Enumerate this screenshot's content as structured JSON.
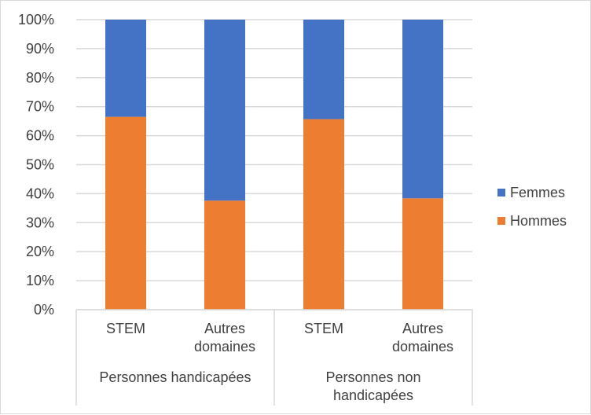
{
  "chart_data": {
    "type": "bar",
    "stacked": "percent",
    "categories": [
      "STEM",
      "Autres domaines",
      "STEM",
      "Autres domaines"
    ],
    "category_lines": [
      [
        "STEM"
      ],
      [
        "Autres",
        "domaines"
      ],
      [
        "STEM"
      ],
      [
        "Autres",
        "domaines"
      ]
    ],
    "groups": [
      {
        "label_lines": [
          "Personnes handicapées"
        ],
        "span": 2
      },
      {
        "label_lines": [
          "Personnes non",
          "handicapées"
        ],
        "span": 2
      }
    ],
    "series": [
      {
        "name": "Hommes",
        "color": "#ED7D31",
        "values": [
          66.5,
          37.6,
          65.7,
          38.4
        ]
      },
      {
        "name": "Femmes",
        "color": "#4472C4",
        "values": [
          33.5,
          62.4,
          34.3,
          61.6
        ]
      }
    ],
    "legend_order": [
      "Femmes",
      "Hommes"
    ],
    "ylim": [
      0,
      100
    ],
    "yticks": [
      "0%",
      "10%",
      "20%",
      "30%",
      "40%",
      "50%",
      "60%",
      "70%",
      "80%",
      "90%",
      "100%"
    ],
    "grid": true,
    "legend_position": "right",
    "title": "",
    "xlabel": "",
    "ylabel": ""
  }
}
